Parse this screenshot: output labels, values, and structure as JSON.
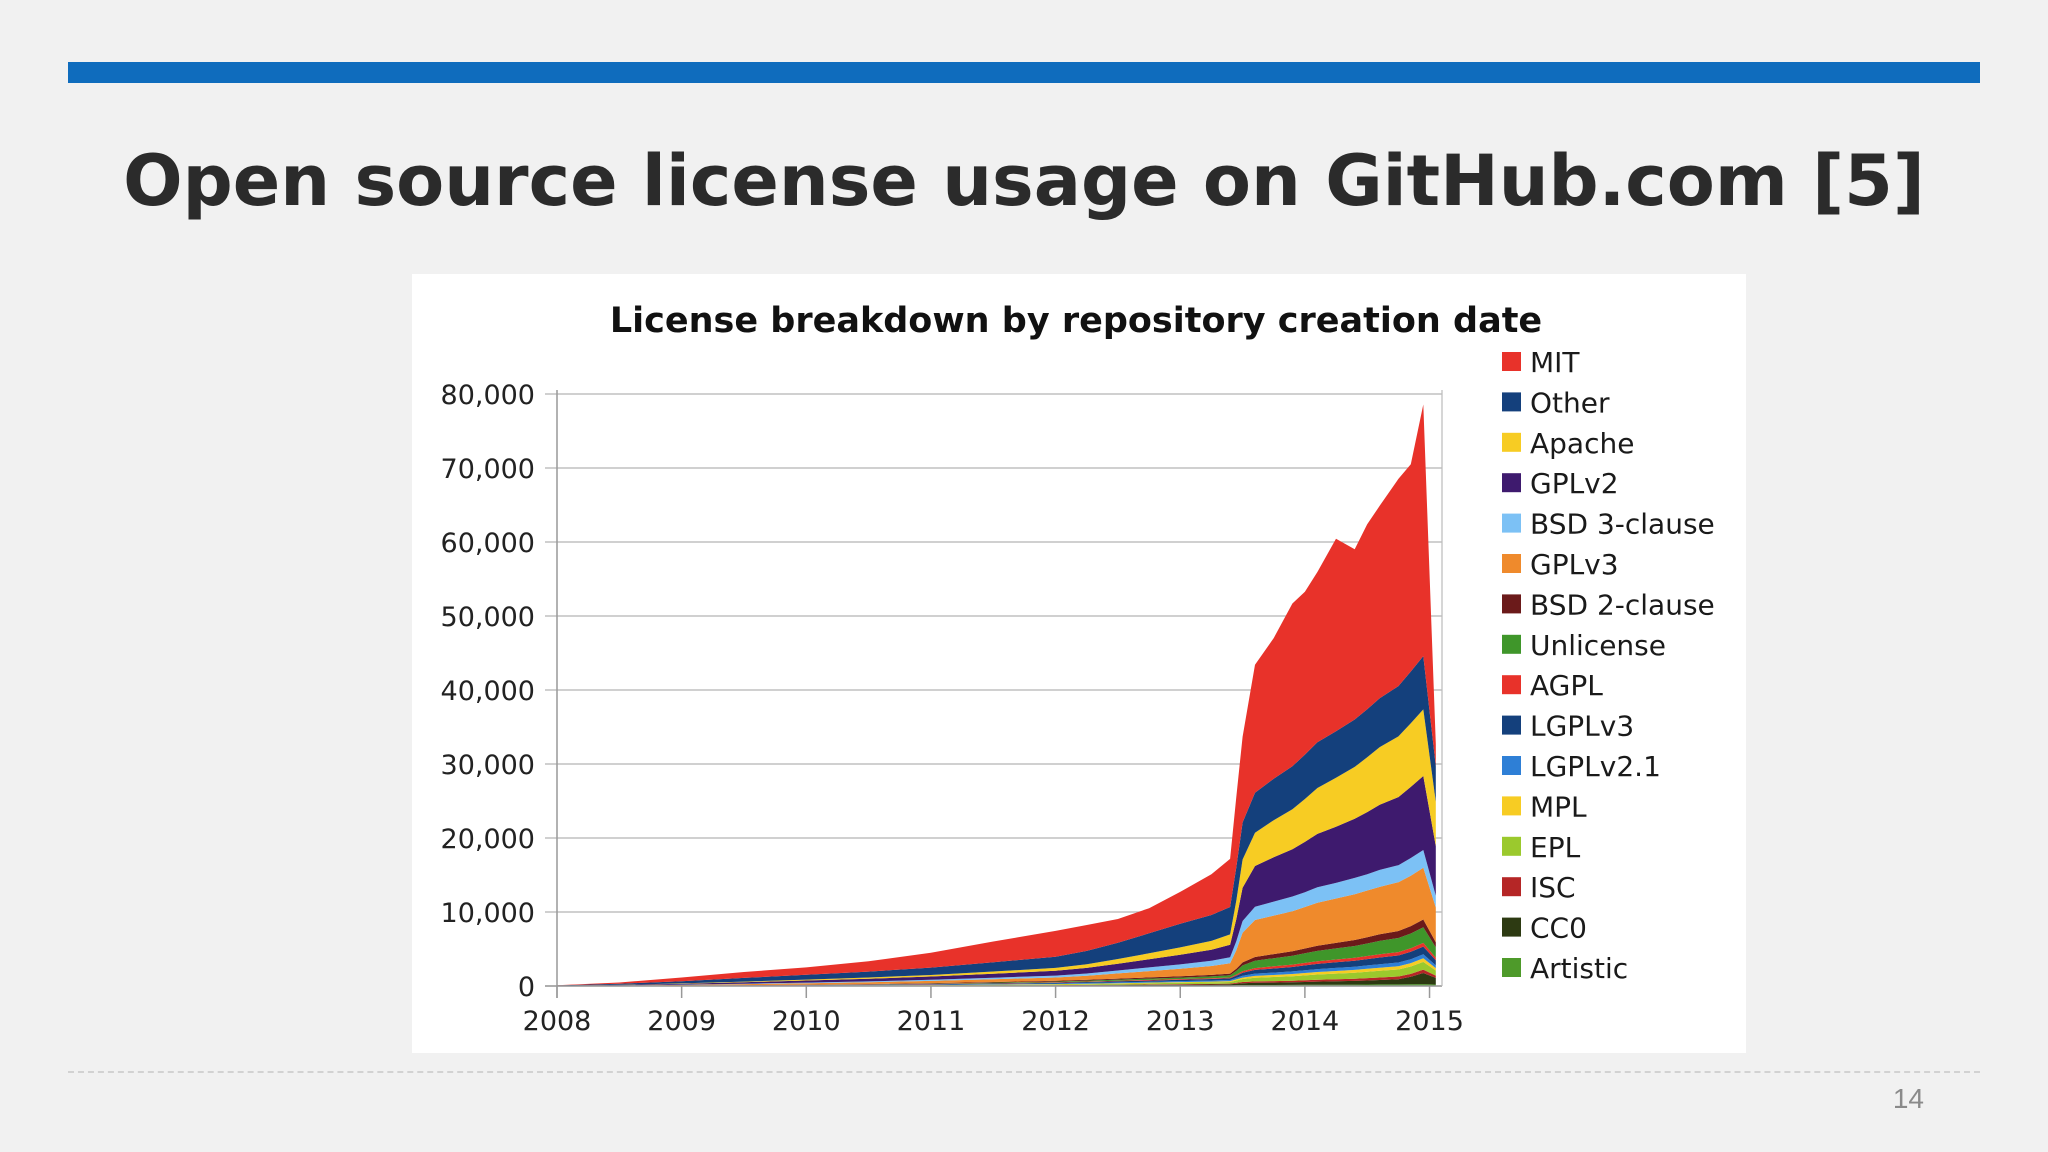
{
  "slide": {
    "title": "Open source license usage on GitHub.com [5]",
    "page_number": "14",
    "accent_color": "#0f6cbd"
  },
  "chart_data": {
    "type": "area",
    "stacked": true,
    "title": "License breakdown by repository creation date",
    "xlabel": "",
    "ylabel": "",
    "xlim": [
      2008,
      2015.1
    ],
    "ylim": [
      0,
      80000
    ],
    "legend_position": "right",
    "grid": true,
    "x_ticks": [
      "2008",
      "2009",
      "2010",
      "2011",
      "2012",
      "2013",
      "2014",
      "2015"
    ],
    "y_ticks": [
      "0",
      "10,000",
      "20,000",
      "30,000",
      "40,000",
      "50,000",
      "60,000",
      "70,000",
      "80,000"
    ],
    "x": [
      2008,
      2008.5,
      2009,
      2009.5,
      2010,
      2010.5,
      2011,
      2011.5,
      2012,
      2012.25,
      2012.5,
      2012.75,
      2013,
      2013.25,
      2013.4,
      2013.45,
      2013.5,
      2013.6,
      2013.75,
      2013.9,
      2014,
      2014.1,
      2014.25,
      2014.4,
      2014.5,
      2014.6,
      2014.75,
      2014.85,
      2014.95,
      2015.05
    ],
    "series": [
      {
        "name": "Artistic",
        "color": "#4e9a2a",
        "values": [
          0,
          2,
          5,
          8,
          10,
          12,
          15,
          20,
          30,
          35,
          40,
          45,
          50,
          60,
          65,
          100,
          120,
          130,
          140,
          150,
          160,
          170,
          180,
          190,
          200,
          210,
          220,
          240,
          260,
          200
        ]
      },
      {
        "name": "CC0",
        "color": "#2d3a12",
        "values": [
          0,
          0,
          0,
          0,
          5,
          10,
          15,
          25,
          40,
          60,
          80,
          100,
          120,
          140,
          160,
          200,
          250,
          300,
          320,
          350,
          380,
          420,
          460,
          500,
          550,
          600,
          700,
          1000,
          1500,
          900
        ]
      },
      {
        "name": "ISC",
        "color": "#b52626",
        "values": [
          0,
          0,
          0,
          5,
          10,
          15,
          20,
          30,
          40,
          50,
          60,
          70,
          80,
          90,
          100,
          140,
          170,
          190,
          200,
          220,
          240,
          260,
          280,
          300,
          320,
          340,
          360,
          400,
          450,
          300
        ]
      },
      {
        "name": "EPL",
        "color": "#9bc92d",
        "values": [
          0,
          0,
          5,
          10,
          20,
          30,
          40,
          60,
          80,
          100,
          120,
          150,
          180,
          200,
          220,
          300,
          400,
          500,
          550,
          600,
          650,
          700,
          750,
          800,
          850,
          900,
          950,
          1000,
          1050,
          700
        ]
      },
      {
        "name": "MPL",
        "color": "#f7cc23",
        "values": [
          0,
          5,
          10,
          15,
          20,
          30,
          40,
          50,
          60,
          70,
          80,
          90,
          100,
          110,
          120,
          150,
          200,
          250,
          280,
          300,
          320,
          340,
          360,
          380,
          400,
          420,
          440,
          460,
          480,
          320
        ]
      },
      {
        "name": "LGPLv2.1",
        "color": "#2e7fd6",
        "values": [
          0,
          5,
          10,
          20,
          30,
          40,
          50,
          70,
          90,
          100,
          110,
          120,
          130,
          140,
          150,
          200,
          250,
          300,
          320,
          350,
          380,
          400,
          420,
          440,
          460,
          480,
          500,
          520,
          540,
          360
        ]
      },
      {
        "name": "LGPLv3",
        "color": "#14407c",
        "values": [
          0,
          5,
          10,
          20,
          30,
          40,
          60,
          80,
          100,
          120,
          140,
          160,
          180,
          200,
          220,
          300,
          400,
          500,
          550,
          600,
          650,
          700,
          750,
          800,
          850,
          900,
          950,
          1000,
          1050,
          700
        ]
      },
      {
        "name": "AGPL",
        "color": "#e8322a",
        "values": [
          0,
          5,
          10,
          15,
          20,
          30,
          40,
          50,
          60,
          70,
          80,
          90,
          100,
          110,
          120,
          150,
          200,
          250,
          300,
          320,
          340,
          360,
          380,
          400,
          420,
          440,
          460,
          480,
          500,
          330
        ]
      },
      {
        "name": "Unlicense",
        "color": "#3f962a",
        "values": [
          0,
          0,
          5,
          10,
          20,
          30,
          50,
          70,
          100,
          120,
          150,
          180,
          200,
          250,
          300,
          500,
          800,
          1000,
          1100,
          1200,
          1300,
          1400,
          1500,
          1600,
          1700,
          1800,
          1900,
          2000,
          2100,
          1400
        ]
      },
      {
        "name": "BSD 2-clause",
        "color": "#6b1a1a",
        "values": [
          0,
          5,
          10,
          20,
          30,
          40,
          60,
          80,
          100,
          120,
          140,
          160,
          180,
          200,
          220,
          300,
          400,
          500,
          550,
          600,
          650,
          700,
          750,
          800,
          850,
          900,
          950,
          1000,
          1050,
          700
        ]
      },
      {
        "name": "GPLv3",
        "color": "#ef8a2c",
        "values": [
          10,
          40,
          80,
          130,
          180,
          230,
          300,
          380,
          450,
          550,
          700,
          850,
          1000,
          1200,
          1400,
          2500,
          4000,
          5000,
          5200,
          5400,
          5600,
          5800,
          6000,
          6200,
          6300,
          6400,
          6600,
          6800,
          7000,
          4700
        ]
      },
      {
        "name": "BSD 3-clause",
        "color": "#7cc1f5",
        "values": [
          5,
          20,
          40,
          60,
          90,
          120,
          150,
          200,
          250,
          300,
          400,
          500,
          600,
          700,
          800,
          1200,
          1600,
          1800,
          1900,
          2000,
          2000,
          2100,
          2100,
          2200,
          2200,
          2300,
          2300,
          2400,
          2400,
          1600
        ]
      },
      {
        "name": "GPLv2",
        "color": "#3e1a6e",
        "values": [
          20,
          60,
          120,
          200,
          280,
          360,
          450,
          550,
          650,
          750,
          900,
          1100,
          1300,
          1500,
          1700,
          3000,
          4500,
          5500,
          6000,
          6400,
          6800,
          7200,
          7600,
          8000,
          8400,
          8800,
          9200,
          9600,
          10000,
          6700
        ]
      },
      {
        "name": "Apache",
        "color": "#f7cc23",
        "values": [
          5,
          20,
          40,
          80,
          120,
          160,
          200,
          300,
          400,
          500,
          650,
          800,
          1000,
          1200,
          1400,
          2500,
          3800,
          4500,
          5000,
          5400,
          5800,
          6200,
          6600,
          7000,
          7400,
          7800,
          8200,
          8600,
          9000,
          6000
        ]
      },
      {
        "name": "Other",
        "color": "#14407c",
        "values": [
          40,
          150,
          300,
          500,
          650,
          800,
          1000,
          1250,
          1500,
          1800,
          2200,
          2700,
          3200,
          3500,
          3700,
          4500,
          5000,
          5400,
          5600,
          5800,
          6000,
          6200,
          6300,
          6400,
          6500,
          6600,
          6800,
          7000,
          7200,
          4800
        ]
      },
      {
        "name": "MIT",
        "color": "#e8322a",
        "values": [
          10,
          150,
          500,
          800,
          1000,
          1400,
          2000,
          2800,
          3500,
          3500,
          3200,
          3400,
          4300,
          5500,
          6500,
          9500,
          11600,
          17300,
          19000,
          22000,
          22000,
          23000,
          26000,
          23000,
          25000,
          26000,
          28000,
          28000,
          34000,
          3000
        ]
      }
    ]
  }
}
